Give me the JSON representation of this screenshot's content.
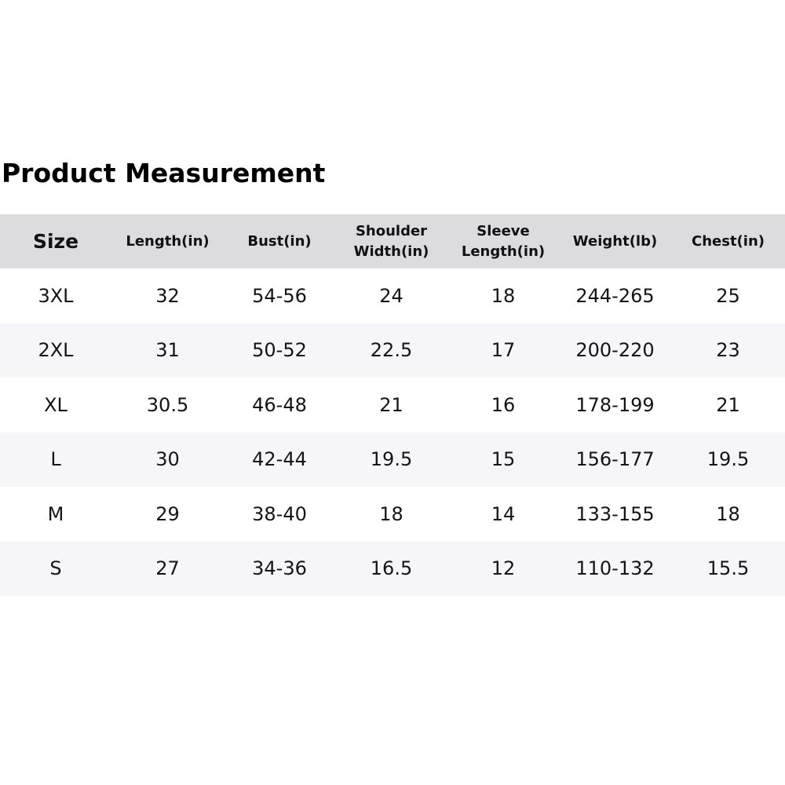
{
  "title": "Product Measurement",
  "colors": {
    "header_background": "#dcdcdf",
    "alternate_row_background": "#f6f6f9",
    "text": "#111111"
  },
  "table": {
    "headers": [
      "Size",
      "Length(in)",
      "Bust(in)",
      "Shoulder\nWidth(in)",
      "Sleeve\nLength(in)",
      "Weight(lb)",
      "Chest(in)"
    ],
    "rows": [
      [
        "3XL",
        "32",
        "54-56",
        "24",
        "18",
        "244-265",
        "25"
      ],
      [
        "2XL",
        "31",
        "50-52",
        "22.5",
        "17",
        "200-220",
        "23"
      ],
      [
        "XL",
        "30.5",
        "46-48",
        "21",
        "16",
        "178-199",
        "21"
      ],
      [
        "L",
        "30",
        "42-44",
        "19.5",
        "15",
        "156-177",
        "19.5"
      ],
      [
        "M",
        "29",
        "38-40",
        "18",
        "14",
        "133-155",
        "18"
      ],
      [
        "S",
        "27",
        "34-36",
        "16.5",
        "12",
        "110-132",
        "15.5"
      ]
    ]
  }
}
